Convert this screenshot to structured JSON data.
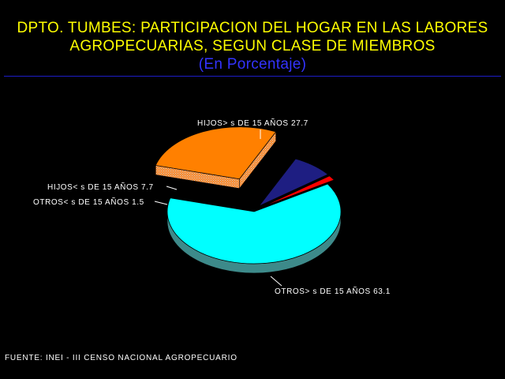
{
  "header": {
    "title_line1": "DPTO. TUMBES: PARTICIPACION DEL HOGAR EN LAS LABORES",
    "title_line2": "AGROPECUARIAS, SEGUN CLASE DE MIEMBROS",
    "subtitle": "(En Porcentaje)"
  },
  "colors": {
    "background": "#000000",
    "title": "#ffff00",
    "subtitle": "#3333ff",
    "rule": "#1c1cc8",
    "labels": "#ffffff"
  },
  "chart_data": {
    "type": "pie",
    "style": "3d-exploded",
    "title": "DPTO. TUMBES: PARTICIPACION DEL HOGAR EN LAS LABORES AGROPECUARIAS, SEGUN CLASE DE MIEMBROS",
    "subtitle": "(En Porcentaje)",
    "slices": [
      {
        "label": "OTROS> s DE 15 AÑOS",
        "value": 63.1,
        "value_text": "63.1",
        "color": "#00ffff",
        "side": "#3d8a8a"
      },
      {
        "label": "HIJOS> s DE 15 AÑOS",
        "value": 27.7,
        "value_text": "27.7",
        "color": "#ff8000",
        "side": "#b8907a"
      },
      {
        "label": "HIJOS< s DE 15 AÑOS",
        "value": 7.7,
        "value_text": "7.7",
        "color": "#1e1e82",
        "side": "#5a5a88"
      },
      {
        "label": "OTROS< s DE 15 AÑOS",
        "value": 1.5,
        "value_text": "1.5",
        "color": "#ff0000",
        "side": "#8a4040"
      }
    ]
  },
  "footer": {
    "source": "FUENTE: INEI - III CENSO NACIONAL AGROPECUARIO"
  }
}
